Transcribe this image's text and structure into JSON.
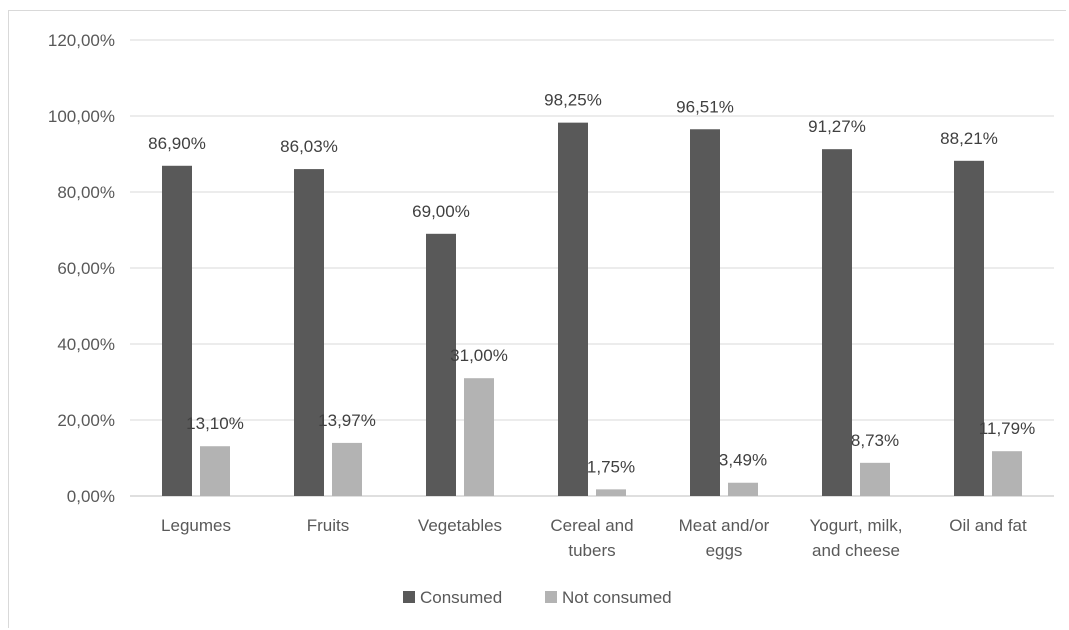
{
  "chart_data": {
    "type": "bar",
    "categories": [
      [
        "Legumes"
      ],
      [
        "Fruits"
      ],
      [
        "Vegetables"
      ],
      [
        "Cereal and",
        "tubers"
      ],
      [
        "Meat and/or",
        "eggs"
      ],
      [
        "Yogurt, milk,",
        "and cheese"
      ],
      [
        "Oil and fat"
      ]
    ],
    "series": [
      {
        "name": "Consumed",
        "color": "#595959",
        "values": [
          86.9,
          86.03,
          69.0,
          98.25,
          96.51,
          91.27,
          88.21
        ],
        "labels": [
          "86,90%",
          "86,03%",
          "69,00%",
          "98,25%",
          "96,51%",
          "91,27%",
          "88,21%"
        ]
      },
      {
        "name": "Not consumed",
        "color": "#b3b3b3",
        "values": [
          13.1,
          13.97,
          31.0,
          1.75,
          3.49,
          8.73,
          11.79
        ],
        "labels": [
          "13,10%",
          "13,97%",
          "31,00%",
          "1,75%",
          "3,49%",
          "8,73%",
          "11,79%"
        ]
      }
    ],
    "yticks": [
      "0,00%",
      "20,00%",
      "40,00%",
      "60,00%",
      "80,00%",
      "100,00%",
      "120,00%"
    ],
    "ylim": [
      0,
      120
    ],
    "grid": true,
    "legend_position": "bottom"
  }
}
